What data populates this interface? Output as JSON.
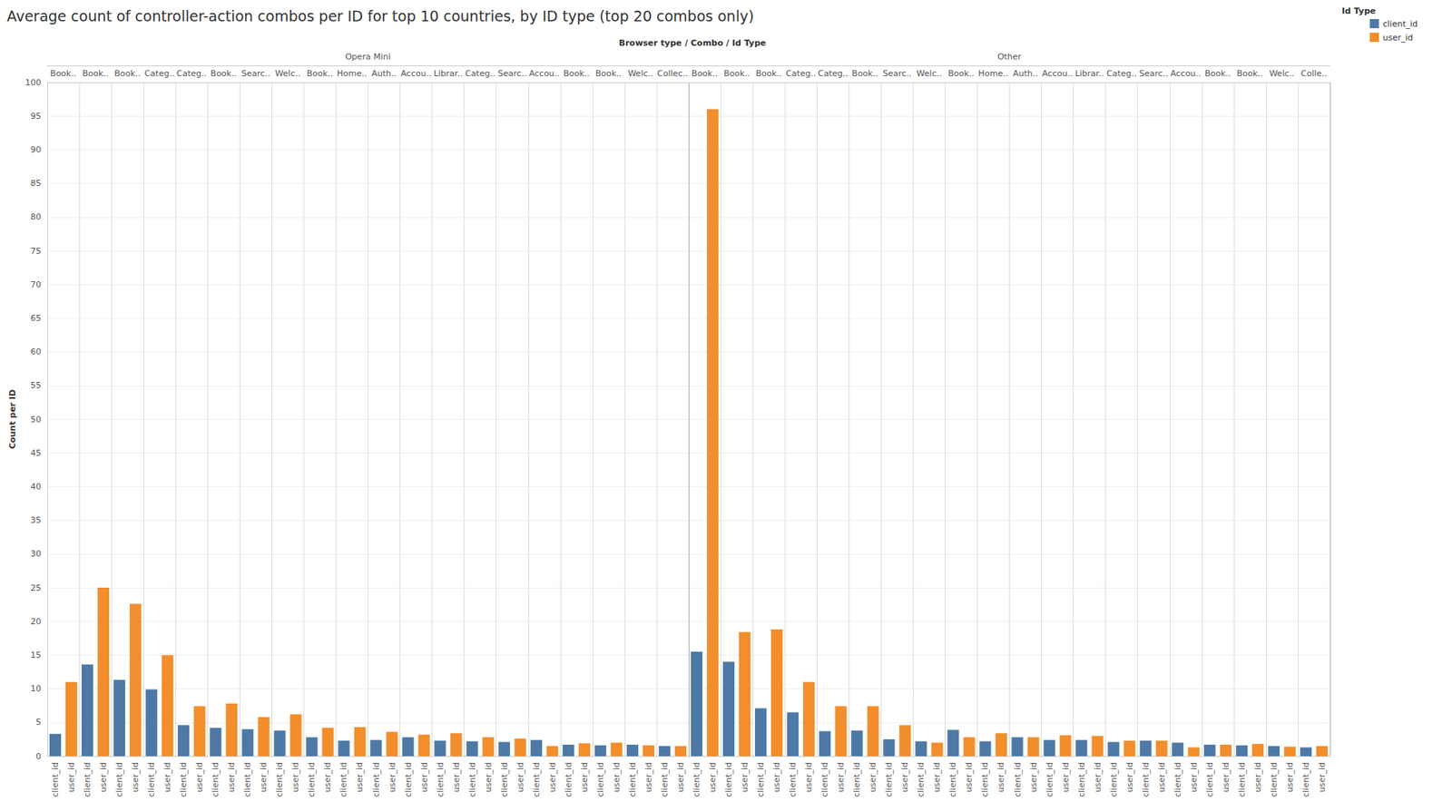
{
  "chart_data": {
    "type": "bar",
    "title": "Average count of controller-action combos per ID for top 10 countries, by ID type (top 20 combos only)",
    "x_label": "Browser type / Combo / Id Type",
    "y_label": "Count per ID",
    "legend_title": "Id Type",
    "legend": "top-right",
    "grid": true,
    "groups": [
      {
        "name": "Opera Mini",
        "categories": [
          "Book..",
          "Book..",
          "Book..",
          "Categ..",
          "Categ..",
          "Book..",
          "Searc..",
          "Welc..",
          "Book..",
          "Home..",
          "Auth..",
          "Accou..",
          "Librar..",
          "Categ..",
          "Searc..",
          "Accou..",
          "Book..",
          "Book..",
          "Welc..",
          "Collec.."
        ]
      },
      {
        "name": "Other",
        "categories": [
          "Book..",
          "Book..",
          "Book..",
          "Categ..",
          "Categ..",
          "Book..",
          "Searc..",
          "Welc..",
          "Book..",
          "Home..",
          "Auth..",
          "Accou..",
          "Librar..",
          "Categ..",
          "Searc..",
          "Accou..",
          "Book..",
          "Book..",
          "Welc..",
          "Colle.."
        ]
      }
    ],
    "series": [
      {
        "name": "client_id",
        "color": "#4e79a7",
        "values": [
          3.3,
          13.6,
          11.3,
          9.9,
          4.6,
          4.2,
          4.0,
          3.8,
          2.8,
          2.3,
          2.4,
          2.8,
          2.3,
          2.2,
          2.1,
          2.4,
          1.7,
          1.6,
          1.7,
          1.5,
          15.5,
          14.0,
          7.1,
          6.5,
          3.7,
          3.8,
          2.5,
          2.2,
          3.9,
          2.2,
          2.8,
          2.4,
          2.4,
          2.1,
          2.3,
          2.0,
          1.7,
          1.6,
          1.5,
          1.3
        ]
      },
      {
        "name": "user_id",
        "color": "#f28e2b",
        "values": [
          11.0,
          25.0,
          22.6,
          15.0,
          7.4,
          7.8,
          5.8,
          6.2,
          4.2,
          4.3,
          3.6,
          3.2,
          3.4,
          2.8,
          2.6,
          1.5,
          1.9,
          2.0,
          1.6,
          1.5,
          96.0,
          18.4,
          18.8,
          11.0,
          7.4,
          7.4,
          4.6,
          2.0,
          2.8,
          3.4,
          2.8,
          3.1,
          3.0,
          2.3,
          2.3,
          1.3,
          1.7,
          1.8,
          1.4,
          1.5
        ]
      }
    ],
    "ylim": [
      0,
      100
    ],
    "yticks": [
      0,
      5,
      10,
      15,
      20,
      25,
      30,
      35,
      40,
      45,
      50,
      55,
      60,
      65,
      70,
      75,
      80,
      85,
      90,
      95,
      100
    ]
  }
}
